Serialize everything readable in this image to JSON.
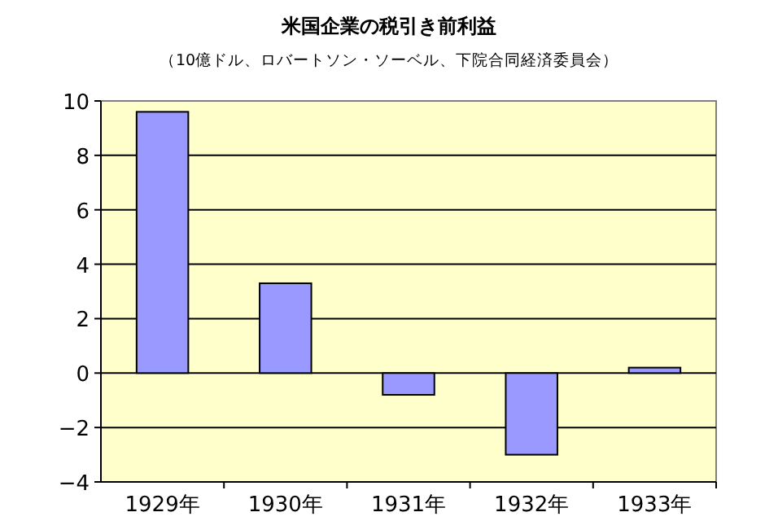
{
  "chart_data": {
    "type": "bar",
    "title": "米国企業の税引き前利益",
    "subtitle": "（10億ドル、ロバートソン・ソーベル、下院合同経済委員会）",
    "categories": [
      "1929年",
      "1930年",
      "1931年",
      "1932年",
      "1933年"
    ],
    "values": [
      9.6,
      3.3,
      -0.8,
      -3.0,
      0.2
    ],
    "color": "#9999ff",
    "ylim": [
      -4,
      10
    ],
    "yticks": [
      -4,
      -2,
      0,
      2,
      4,
      6,
      8,
      10
    ],
    "grid": "y"
  }
}
